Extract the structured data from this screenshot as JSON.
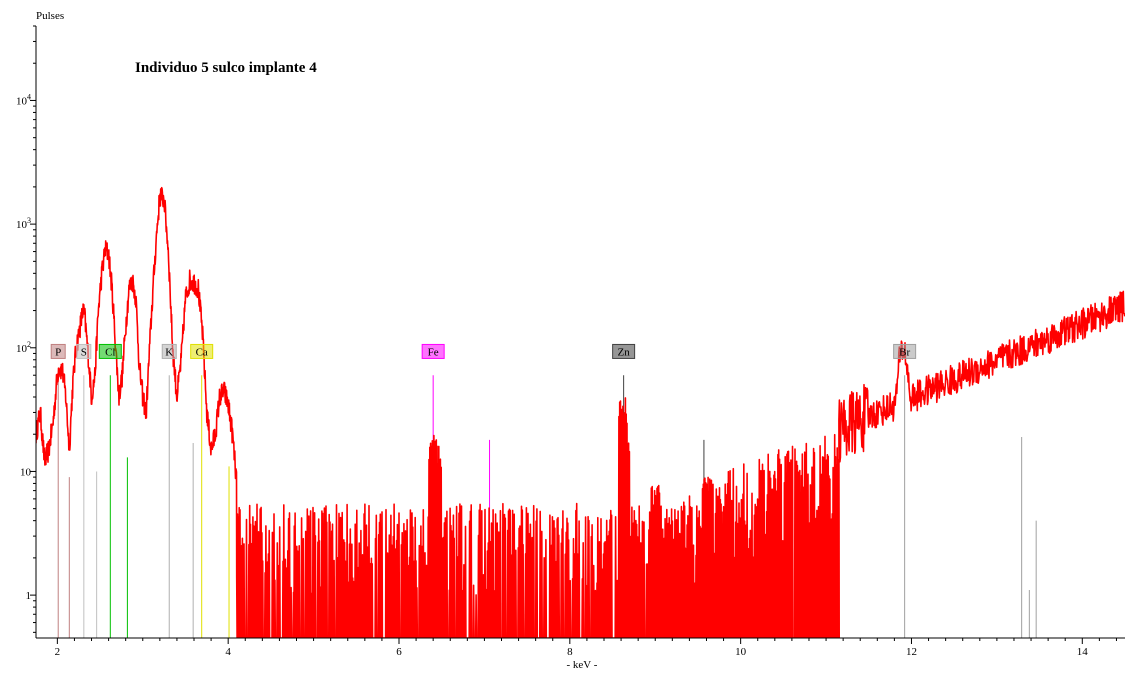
{
  "chart_data": {
    "type": "line",
    "title": "Individuo 5 sulco implante 4",
    "ylabel": "Pulses",
    "xlabel": "- keV -",
    "x_scale": "linear",
    "y_scale": "log",
    "xlim": [
      1.75,
      14.5
    ],
    "ylim": [
      0.45,
      40000
    ],
    "x_ticks": [
      2,
      4,
      6,
      8,
      10,
      12,
      14
    ],
    "x_tick_labels": [
      "2",
      "4",
      "6",
      "8",
      "10",
      "12",
      "14"
    ],
    "y_ticks": [
      1,
      10,
      100,
      1000,
      10000
    ],
    "y_tick_labels": [
      {
        "base": "1",
        "exp": ""
      },
      {
        "base": "10",
        "exp": ""
      },
      {
        "base": "10",
        "exp": "2"
      },
      {
        "base": "10",
        "exp": "3"
      },
      {
        "base": "10",
        "exp": "4"
      }
    ],
    "grid": false,
    "series": [
      {
        "color": "#ff0000",
        "x": [
          1.75,
          1.8,
          1.85,
          1.9,
          1.95,
          2.0,
          2.02,
          2.06,
          2.1,
          2.14,
          2.18,
          2.22,
          2.26,
          2.3,
          2.32,
          2.36,
          2.4,
          2.44,
          2.48,
          2.52,
          2.56,
          2.6,
          2.64,
          2.68,
          2.72,
          2.76,
          2.8,
          2.84,
          2.88,
          2.92,
          2.96,
          3.0,
          3.04,
          3.08,
          3.12,
          3.16,
          3.2,
          3.25,
          3.3,
          3.35,
          3.4,
          3.45,
          3.5,
          3.55,
          3.6,
          3.65,
          3.7,
          3.75,
          3.8,
          3.85,
          3.9,
          3.95,
          4.0,
          4.05,
          4.1
        ],
        "y": [
          20,
          30,
          12,
          15,
          25,
          60,
          70,
          65,
          40,
          15,
          50,
          100,
          140,
          200,
          180,
          90,
          40,
          60,
          200,
          400,
          620,
          580,
          300,
          110,
          40,
          60,
          150,
          300,
          350,
          250,
          70,
          40,
          30,
          100,
          300,
          800,
          1700,
          1600,
          600,
          100,
          40,
          80,
          250,
          350,
          340,
          300,
          130,
          30,
          15,
          20,
          40,
          45,
          35,
          20,
          8
        ]
      }
    ],
    "noise_region": {
      "x_range": [
        4.1,
        11.15
      ],
      "base_level_range": [
        1,
        4
      ],
      "spikes": [
        [
          6.4,
          20
        ],
        [
          6.45,
          16
        ],
        [
          8.62,
          40
        ],
        [
          8.65,
          20
        ],
        [
          9.0,
          8
        ],
        [
          9.6,
          10
        ],
        [
          10.4,
          10
        ],
        [
          11.0,
          14
        ]
      ]
    },
    "background_region": {
      "x_range": [
        9.0,
        14.5
      ],
      "start": 5,
      "end": 220,
      "peaks": [
        [
          11.85,
          95
        ],
        [
          12.0,
          35
        ]
      ]
    },
    "element_lines": [
      {
        "label": "P",
        "x": 2.01,
        "height": 60,
        "color": "#c08080"
      },
      {
        "label": "S",
        "x": 2.31,
        "height": 60,
        "color": "#c0c0c0"
      },
      {
        "label": "Cl",
        "x": 2.62,
        "height": 60,
        "color": "#00c000"
      },
      {
        "label": "K",
        "x": 3.31,
        "height": 60,
        "color": "#b0b0b0"
      },
      {
        "label": "Ca",
        "x": 3.69,
        "height": 60,
        "color": "#e0e000"
      },
      {
        "label": "Fe",
        "x": 6.4,
        "height": 60,
        "color": "#ff00ff"
      },
      {
        "label": "Zn",
        "x": 8.63,
        "height": 60,
        "color": "#404040"
      },
      {
        "label": "Br",
        "x": 11.92,
        "height": 60,
        "color": "#a0a0a0"
      }
    ],
    "secondary_lines": [
      {
        "x": 2.14,
        "height": 9,
        "color": "#c08080"
      },
      {
        "x": 2.46,
        "height": 10,
        "color": "#c0c0c0"
      },
      {
        "x": 2.82,
        "height": 13,
        "color": "#00c000"
      },
      {
        "x": 3.59,
        "height": 17,
        "color": "#b0b0b0"
      },
      {
        "x": 4.01,
        "height": 11,
        "color": "#e0e000"
      },
      {
        "x": 7.06,
        "height": 18,
        "color": "#ff00ff"
      },
      {
        "x": 9.57,
        "height": 18,
        "color": "#404040"
      },
      {
        "x": 13.29,
        "height": 19,
        "color": "#a0a0a0"
      },
      {
        "x": 13.38,
        "height": 1.1,
        "color": "#a0a0a0"
      },
      {
        "x": 13.46,
        "height": 4,
        "color": "#a0a0a0"
      }
    ]
  }
}
